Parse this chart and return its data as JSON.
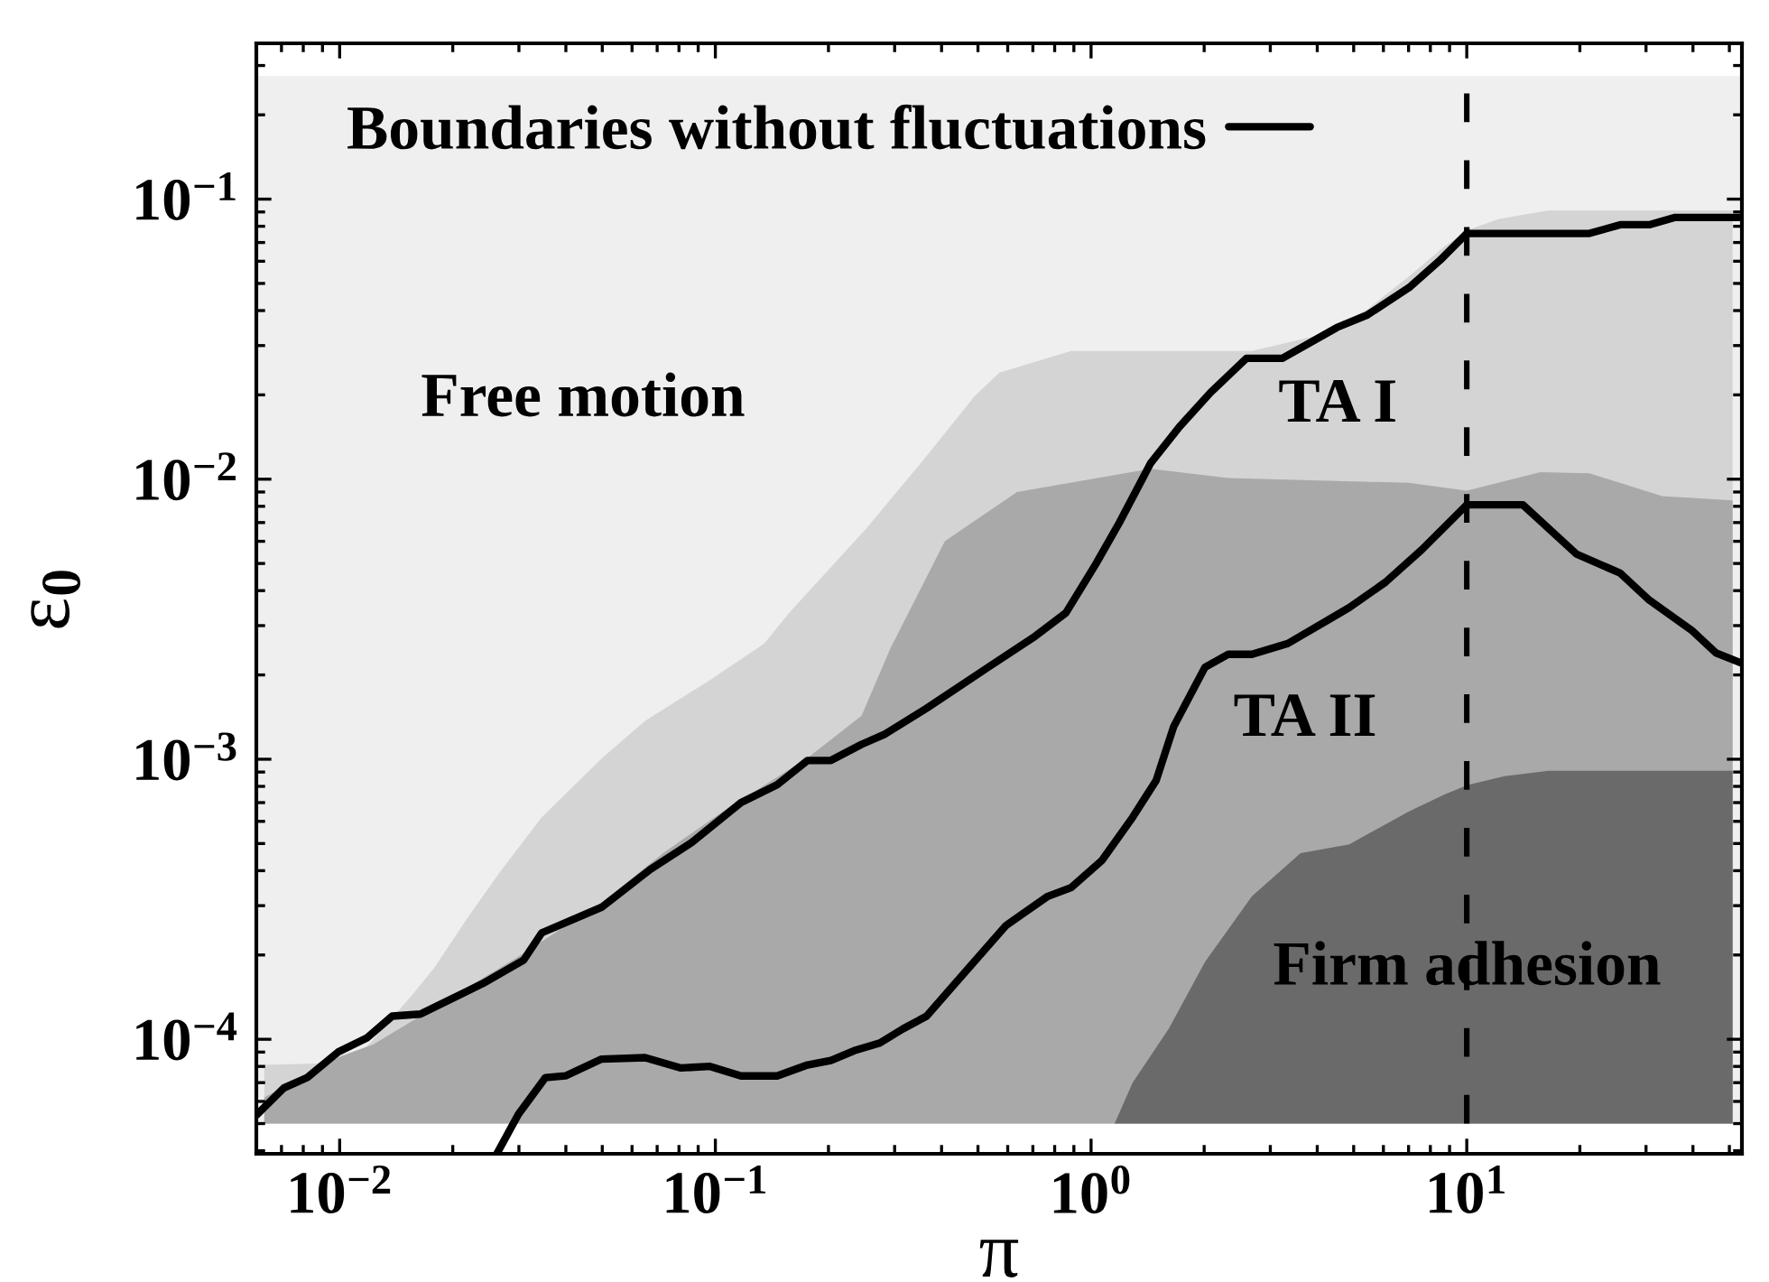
{
  "chart_data": {
    "type": "area",
    "xlabel": "π",
    "ylabel": "ε$_{0}$",
    "log": "xy",
    "xlim": [
      0.006,
      54
    ],
    "ylim": [
      3.9e-05,
      0.36
    ],
    "xticks": [
      {
        "value": 0.01,
        "label": "10$^{−2}$"
      },
      {
        "value": 0.1,
        "label": "10$^{−1}$"
      },
      {
        "value": 1,
        "label": "10$^{0}$"
      },
      {
        "value": 10,
        "label": "10$^{1}$"
      }
    ],
    "yticks": [
      {
        "value": 0.0001,
        "label": "10$^{−4}$"
      },
      {
        "value": 0.001,
        "label": "10$^{−3}$"
      },
      {
        "value": 0.01,
        "label": "10$^{−2}$"
      },
      {
        "value": 0.1,
        "label": "10$^{−1}$"
      }
    ],
    "legend": "top left",
    "ref_lines": [
      {
        "axis": "x",
        "value": 10,
        "color": "#000000",
        "line_style": "dashed"
      }
    ],
    "bands": [
      {
        "axis": "y",
        "from": 5e-05,
        "to": 0.275,
        "color": "#efefef"
      }
    ],
    "annotations": [
      "Free motion",
      "TA I",
      "TA II",
      "Firm adhesion"
    ],
    "series": [
      {
        "color": "#d4d4d4",
        "x": [
          0.0063,
          0.0087,
          0.0118,
          0.0154,
          0.0178,
          0.0222,
          0.0268,
          0.0345,
          0.05,
          0.065,
          0.097,
          0.135,
          0.157,
          0.253,
          0.365,
          0.49,
          0.57,
          0.885,
          2.68,
          3.9,
          5.44,
          7.0,
          8.75,
          10.1,
          12.2,
          16.4,
          51
        ],
        "values": [
          8.1e-05,
          8.2e-05,
          9.4e-05,
          0.000141,
          0.000179,
          0.000279,
          0.000398,
          0.00062,
          0.00101,
          0.00137,
          0.00192,
          0.00259,
          0.00333,
          0.0067,
          0.0121,
          0.0198,
          0.024,
          0.0287,
          0.0287,
          0.0323,
          0.0404,
          0.0528,
          0.068,
          0.0777,
          0.085,
          0.091,
          0.091
        ]
      },
      {
        "color": "#a9a9a9",
        "x": [
          0.0063,
          0.0099,
          0.0123,
          0.0164,
          0.03,
          0.05,
          0.0726,
          0.1045,
          0.176,
          0.245,
          0.292,
          0.408,
          0.635,
          1.44,
          2.32,
          7.0,
          10,
          15.7,
          21.2,
          33.1,
          51
        ],
        "values": [
          6.2e-05,
          8.6e-05,
          9.6e-05,
          0.000121,
          0.000198,
          0.000309,
          0.000462,
          0.00065,
          0.00101,
          0.00143,
          0.00248,
          0.006,
          0.009,
          0.0109,
          0.0101,
          0.0097,
          0.0091,
          0.0106,
          0.0105,
          0.0087,
          0.0084
        ]
      },
      {
        "color": "#6a6a6a",
        "x": [
          1.155,
          1.29,
          1.61,
          2.01,
          2.68,
          3.61,
          4.87,
          7.0,
          8.75,
          10.1,
          12.6,
          16.5,
          51
        ],
        "values": [
          5e-05,
          7e-05,
          0.000109,
          0.000189,
          0.000324,
          0.000462,
          0.000497,
          0.00065,
          0.00075,
          0.00081,
          0.00087,
          0.00091,
          0.00091
        ]
      },
      {
        "type": "line",
        "name": "Boundaries without fluctuations",
        "color": "#000000",
        "x": [
          0.006,
          0.0071,
          0.0082,
          0.0099,
          0.0118,
          0.0138,
          0.0164,
          0.024,
          0.0309,
          0.0345,
          0.0498,
          0.0671,
          0.0866,
          0.117,
          0.146,
          0.176,
          0.203,
          0.245,
          0.283,
          0.365,
          0.532,
          0.71,
          0.857,
          1.03,
          1.19,
          1.44,
          1.72,
          2.08,
          2.59,
          3.23,
          4.51,
          5.44,
          7.02,
          8.48,
          10,
          21.2,
          25.6,
          30.6,
          35.7,
          54
        ],
        "values": [
          5.36e-05,
          6.7e-05,
          7.3e-05,
          9e-05,
          0.000101,
          0.000121,
          0.000123,
          0.000158,
          0.000192,
          0.00024,
          0.000296,
          0.000404,
          0.000505,
          0.0007,
          0.00081,
          0.00099,
          0.00099,
          0.00113,
          0.00123,
          0.00152,
          0.00213,
          0.00275,
          0.00333,
          0.00498,
          0.007,
          0.0114,
          0.0154,
          0.0204,
          0.027,
          0.027,
          0.0348,
          0.0386,
          0.0483,
          0.0604,
          0.0754,
          0.0754,
          0.081,
          0.081,
          0.086,
          0.086
        ]
      },
      {
        "type": "line",
        "color": "#000000",
        "x": [
          0.0262,
          0.0299,
          0.0353,
          0.0399,
          0.0498,
          0.065,
          0.081,
          0.0968,
          0.117,
          0.146,
          0.176,
          0.203,
          0.234,
          0.274,
          0.316,
          0.365,
          0.427,
          0.594,
          0.767,
          0.885,
          1.07,
          1.29,
          1.49,
          1.66,
          2.01,
          2.32,
          2.68,
          3.34,
          4.36,
          4.87,
          6.08,
          7.59,
          10,
          14.1,
          19.6,
          25.6,
          30.6,
          39.9,
          46,
          54
        ],
        "values": [
          3.9e-05,
          5.4e-05,
          7.3e-05,
          7.4e-05,
          8.5e-05,
          8.6e-05,
          7.9e-05,
          8e-05,
          7.4e-05,
          7.4e-05,
          8.1e-05,
          8.4e-05,
          9.1e-05,
          9.7e-05,
          0.000109,
          0.000121,
          0.000154,
          0.000255,
          0.000324,
          0.000348,
          0.000436,
          0.00062,
          0.00084,
          0.00131,
          0.00213,
          0.00237,
          0.00237,
          0.00259,
          0.00319,
          0.00348,
          0.00429,
          0.0056,
          0.0081,
          0.0081,
          0.0054,
          0.00462,
          0.0037,
          0.00287,
          0.0024,
          0.0022
        ]
      }
    ]
  }
}
